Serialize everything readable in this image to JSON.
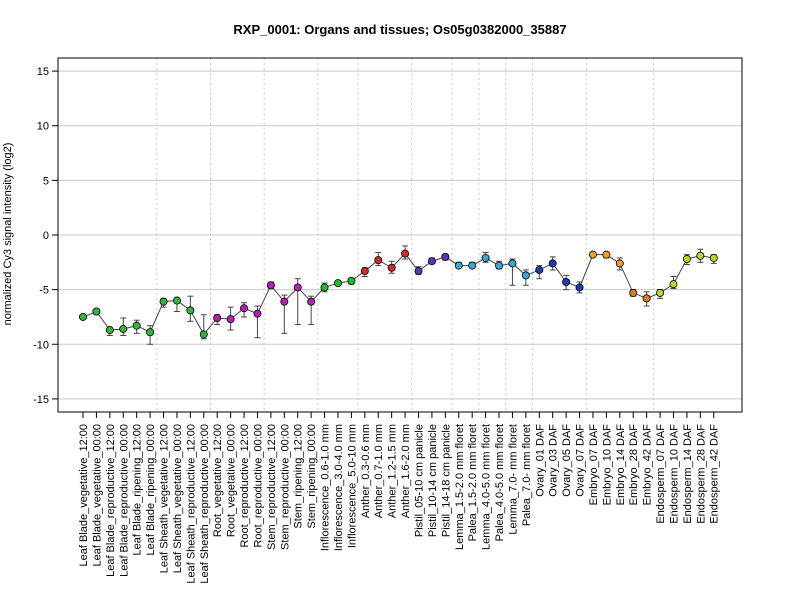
{
  "chart_data": {
    "type": "line",
    "title": "RXP_0001: Organs and tissues; Os05g0382000_35887",
    "ylabel": "normalized Cy3 signal intensity (log2)",
    "xlabel": "",
    "ylim": [
      -16.2,
      16.2
    ],
    "yticks": [
      -15,
      -10,
      -5,
      0,
      5,
      10,
      15
    ],
    "grid": {
      "horizontal": true,
      "vertical": "dotted group separators"
    },
    "categories": [
      "Leaf Blade_vegetative_12:00",
      "Leaf Blade_vegetative_00:00",
      "Leaf Blade_reproductive_12:00",
      "Leaf Blade_reproductive_00:00",
      "Leaf Blade_ripening_12:00",
      "Leaf Blade_ripening_00:00",
      "Leaf Sheath_vegetative_12:00",
      "Leaf Sheath_vegetative_00:00",
      "Leaf Sheath_reproductive_12:00",
      "Leaf Sheath_reproductive_00:00",
      "Root_vegetative_12:00",
      "Root_vegetative_00:00",
      "Root_reproductive_12:00",
      "Root_reproductive_00:00",
      "Stem_reproductive_12:00",
      "Stem_reproductive_00:00",
      "Stem_ripening_12:00",
      "Stem_ripening_00:00",
      "Inflorescence_0.6-1.0 mm",
      "Inflorescence_3.0-4.0 mm",
      "Inflorescence_5.0-10 mm",
      "Anther_0.3-0.6 mm",
      "Anther_0.7-1.0 mm",
      "Anther_1.2-1.5 mm",
      "Anther_1.6-2.0 mm",
      "Pistil_05-10 cm panicle",
      "Pistil_10-14 cm panicle",
      "Pistil_14-18 cm panicle",
      "Lemma_1.5-2.0 mm floret",
      "Palea_1.5-2.0 mm floret",
      "Lemma_4.0-5.0 mm floret",
      "Palea_4.0-5.0 mm floret",
      "Lemma_7.0- mm floret",
      "Palea_7.0- mm floret",
      "Ovary_01 DAF",
      "Ovary_03 DAF",
      "Ovary_05 DAF",
      "Ovary_07 DAF",
      "Embryo_07 DAF",
      "Embryo_10 DAF",
      "Embryo_14 DAF",
      "Embryo_28 DAF",
      "Embryo_42 DAF",
      "Endosperm_07 DAF",
      "Endosperm_10 DAF",
      "Endosperm_14 DAF",
      "Endosperm_28 DAF",
      "Endosperm_42 DAF"
    ],
    "values": [
      -7.5,
      -7.0,
      -8.7,
      -8.6,
      -8.3,
      -8.9,
      -6.1,
      -6.0,
      -6.9,
      -9.1,
      -7.6,
      -7.7,
      -6.7,
      -7.2,
      -4.6,
      -6.1,
      -4.8,
      -6.1,
      -4.8,
      -4.4,
      -4.2,
      -3.3,
      -2.3,
      -3.0,
      -1.7,
      -3.3,
      -2.4,
      -2.0,
      -2.8,
      -2.8,
      -2.1,
      -2.8,
      -2.6,
      -3.7,
      -3.2,
      -2.6,
      -4.3,
      -4.8,
      -1.8,
      -1.8,
      -2.6,
      -5.3,
      -5.8,
      -5.3,
      -4.5,
      -2.2,
      -1.9,
      -2.1
    ],
    "error_low": [
      -7.5,
      -7.3,
      -9.2,
      -9.2,
      -9.0,
      -10.0,
      -6.6,
      -7.0,
      -7.9,
      -9.5,
      -8.2,
      -8.7,
      -7.5,
      -9.4,
      -4.9,
      -9.0,
      -8.2,
      -8.2,
      -5.2,
      -4.6,
      -4.5,
      -3.8,
      -2.8,
      -3.5,
      -2.2,
      -3.6,
      -2.6,
      -2.3,
      -3.0,
      -3.0,
      -2.5,
      -3.1,
      -4.6,
      -4.6,
      -4.0,
      -3.2,
      -5.0,
      -5.3,
      -2.0,
      -2.1,
      -3.2,
      -5.6,
      -6.5,
      -5.8,
      -4.9,
      -2.7,
      -2.5,
      -2.6
    ],
    "error_high": [
      -7.4,
      -6.8,
      -8.5,
      -7.6,
      -7.8,
      -8.3,
      -5.8,
      -5.8,
      -5.6,
      -7.3,
      -7.3,
      -6.6,
      -6.2,
      -6.5,
      -4.3,
      -5.5,
      -4.0,
      -5.6,
      -4.4,
      -4.2,
      -4.0,
      -3.0,
      -1.6,
      -2.4,
      -1.0,
      -2.9,
      -2.1,
      -1.8,
      -2.5,
      -2.5,
      -1.6,
      -2.4,
      -2.2,
      -3.2,
      -2.8,
      -2.0,
      -3.7,
      -4.3,
      -1.6,
      -1.6,
      -2.1,
      -5.0,
      -5.2,
      -5.0,
      -3.8,
      -1.8,
      -1.3,
      -1.8
    ],
    "colors": [
      "#33b53d",
      "#33b53d",
      "#33b53d",
      "#33b53d",
      "#33b53d",
      "#33b53d",
      "#33b53d",
      "#33b53d",
      "#33b53d",
      "#33b53d",
      "#b51fb5",
      "#b51fb5",
      "#b51fb5",
      "#b51fb5",
      "#b51fb5",
      "#b51fb5",
      "#b51fb5",
      "#b51fb5",
      "#16c224",
      "#16c224",
      "#16c224",
      "#d12a2a",
      "#d12a2a",
      "#d12a2a",
      "#d12a2a",
      "#5a35b8",
      "#5a35b8",
      "#5a35b8",
      "#35a9d4",
      "#35a9d4",
      "#35a9d4",
      "#35a9d4",
      "#35a9d4",
      "#35a9d4",
      "#1f3ab3",
      "#1f3ab3",
      "#1f3ab3",
      "#1f3ab3",
      "#f0a020",
      "#f0a020",
      "#f0a020",
      "#e07a20",
      "#e07a20",
      "#b9d62a",
      "#b9d62a",
      "#b9d62a",
      "#b9d62a",
      "#b9d62a"
    ],
    "group_separators_after_index": [
      5,
      9,
      13,
      17,
      20,
      24,
      27,
      29,
      31,
      33,
      37,
      42
    ]
  }
}
